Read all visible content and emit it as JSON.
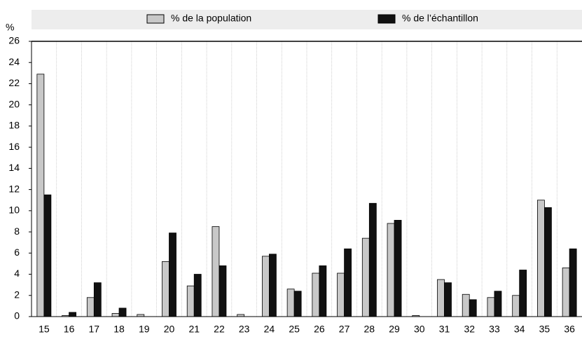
{
  "chart_data": {
    "type": "bar",
    "y_label": "%",
    "categories": [
      "15",
      "16",
      "17",
      "18",
      "19",
      "20",
      "21",
      "22",
      "23",
      "24",
      "25",
      "26",
      "27",
      "28",
      "29",
      "30",
      "31",
      "32",
      "33",
      "34",
      "35",
      "36"
    ],
    "series": [
      {
        "name": "% de la population",
        "color": "#c8c8c8",
        "values": [
          22.9,
          0.1,
          1.8,
          0.3,
          0.2,
          5.2,
          2.9,
          8.5,
          0.2,
          5.7,
          2.6,
          4.1,
          4.1,
          7.4,
          8.8,
          0.1,
          3.5,
          2.1,
          1.8,
          2.0,
          11.0,
          4.6
        ]
      },
      {
        "name": "% de l’échantillon",
        "color": "#111111",
        "values": [
          11.5,
          0.4,
          3.2,
          0.8,
          0,
          7.9,
          4.0,
          4.8,
          0,
          5.9,
          2.4,
          4.8,
          6.4,
          10.7,
          9.1,
          0,
          3.2,
          1.6,
          2.4,
          4.4,
          10.3,
          6.4
        ]
      }
    ],
    "ylim": [
      0,
      26
    ],
    "yticks": [
      0,
      2,
      4,
      6,
      8,
      10,
      12,
      14,
      16,
      18,
      20,
      22,
      24,
      26
    ],
    "legend": "top",
    "grid": true
  }
}
